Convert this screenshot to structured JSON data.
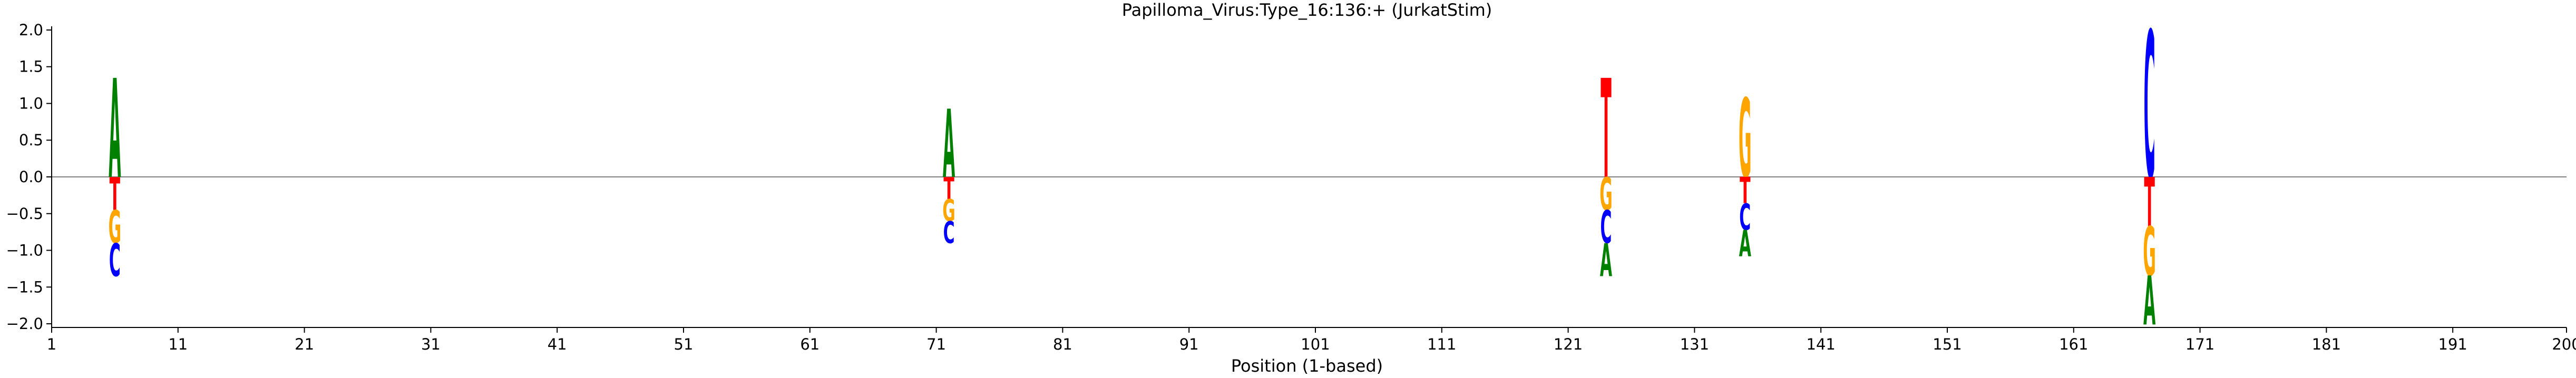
{
  "chart_data": {
    "type": "sequence-logo",
    "title": "Papilloma_Virus:Type_16:136:+  (JurkatStim)",
    "xlabel": "Position (1-based)",
    "ylabel": "",
    "xlim": [
      1,
      200
    ],
    "ylim": [
      -2.05,
      2.05
    ],
    "x_ticks": [
      1,
      11,
      21,
      31,
      41,
      51,
      61,
      71,
      81,
      91,
      101,
      111,
      121,
      131,
      141,
      151,
      161,
      171,
      181,
      191,
      200
    ],
    "y_ticks": [
      2.0,
      1.5,
      1.0,
      0.5,
      0.0,
      -0.5,
      -1.0,
      -1.5,
      -2.0
    ],
    "y_tick_labels": [
      "2.0",
      "1.5",
      "1.0",
      "0.5",
      "0.0",
      "−0.5",
      "−1.0",
      "−1.5",
      "−2.0"
    ],
    "colors": {
      "A": "#008000",
      "C": "#0000ff",
      "G": "#ffa500",
      "T": "#ff0000",
      "zero_line": "#808080"
    },
    "positions": [
      {
        "pos": 6,
        "up": [
          {
            "base": "A",
            "height": 1.35
          }
        ],
        "down": [
          {
            "base": "T",
            "height": 0.45
          },
          {
            "base": "G",
            "height": 0.45
          },
          {
            "base": "C",
            "height": 0.45
          }
        ]
      },
      {
        "pos": 72,
        "up": [
          {
            "base": "A",
            "height": 0.93
          }
        ],
        "down": [
          {
            "base": "T",
            "height": 0.3
          },
          {
            "base": "G",
            "height": 0.3
          },
          {
            "base": "C",
            "height": 0.3
          }
        ]
      },
      {
        "pos": 124,
        "up": [
          {
            "base": "T",
            "height": 1.35
          }
        ],
        "down": [
          {
            "base": "G",
            "height": 0.45
          },
          {
            "base": "C",
            "height": 0.45
          },
          {
            "base": "A",
            "height": 0.45
          }
        ]
      },
      {
        "pos": 135,
        "up": [
          {
            "base": "G",
            "height": 1.08
          }
        ],
        "down": [
          {
            "base": "T",
            "height": 0.36
          },
          {
            "base": "C",
            "height": 0.36
          },
          {
            "base": "A",
            "height": 0.36
          }
        ]
      },
      {
        "pos": 167,
        "up": [
          {
            "base": "C",
            "height": 2.0
          }
        ],
        "down": [
          {
            "base": "T",
            "height": 0.67
          },
          {
            "base": "G",
            "height": 0.67
          },
          {
            "base": "A",
            "height": 0.67
          }
        ]
      }
    ]
  }
}
